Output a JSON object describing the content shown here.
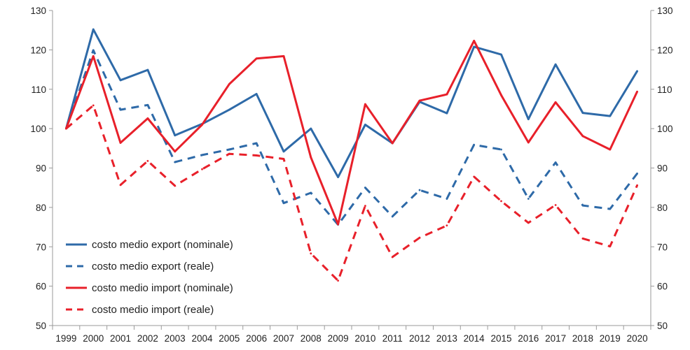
{
  "chart_data": {
    "type": "line",
    "x": [
      "1999",
      "2000",
      "2001",
      "2002",
      "2003",
      "2004",
      "2005",
      "2006",
      "2007",
      "2008",
      "2009",
      "2010",
      "2011",
      "2012",
      "2013",
      "2014",
      "2015",
      "2016",
      "2017",
      "2018",
      "2019",
      "2020"
    ],
    "ylim": [
      50,
      130
    ],
    "yticks": [
      50,
      60,
      70,
      80,
      90,
      100,
      110,
      120,
      130
    ],
    "grid": false,
    "secondary_y_axis": true,
    "legend_position": "bottom-left",
    "series": [
      {
        "name": "costo medio export (nominale)",
        "color": "#2e6aa8",
        "style": "solid",
        "values": [
          100,
          125.2,
          112.3,
          114.9,
          98.3,
          101.2,
          104.8,
          108.8,
          94.2,
          100,
          87.7,
          101,
          96.3,
          106.8,
          103.9,
          120.8,
          118.8,
          102.4,
          116.3,
          104,
          103.2,
          114.6
        ]
      },
      {
        "name": "costo medio export (reale)",
        "color": "#2e6aa8",
        "style": "dashed",
        "values": [
          100,
          119.9,
          104.8,
          106,
          91.5,
          93.3,
          94.7,
          96.3,
          81.1,
          83.7,
          75.6,
          85,
          77.7,
          84.4,
          82.2,
          95.9,
          94.7,
          82.2,
          91.4,
          80.5,
          79.6,
          88.6
        ]
      },
      {
        "name": "costo medio import (nominale)",
        "color": "#e8202a",
        "style": "solid",
        "values": [
          100,
          118.4,
          96.4,
          102.6,
          94.2,
          101,
          111.3,
          117.8,
          118.4,
          92.7,
          75.7,
          106.2,
          96.3,
          107.1,
          108.7,
          122.3,
          108.5,
          96.5,
          106.7,
          98.1,
          94.7,
          109.4
        ]
      },
      {
        "name": "costo medio import (reale)",
        "color": "#e8202a",
        "style": "dashed",
        "values": [
          100,
          105.9,
          85.7,
          91.8,
          85.5,
          89.7,
          93.6,
          93.2,
          92.3,
          68.3,
          61.4,
          80.4,
          67.4,
          72.3,
          75.4,
          87.8,
          81.6,
          76.1,
          80.6,
          72.1,
          70.1,
          85.6
        ]
      }
    ]
  }
}
